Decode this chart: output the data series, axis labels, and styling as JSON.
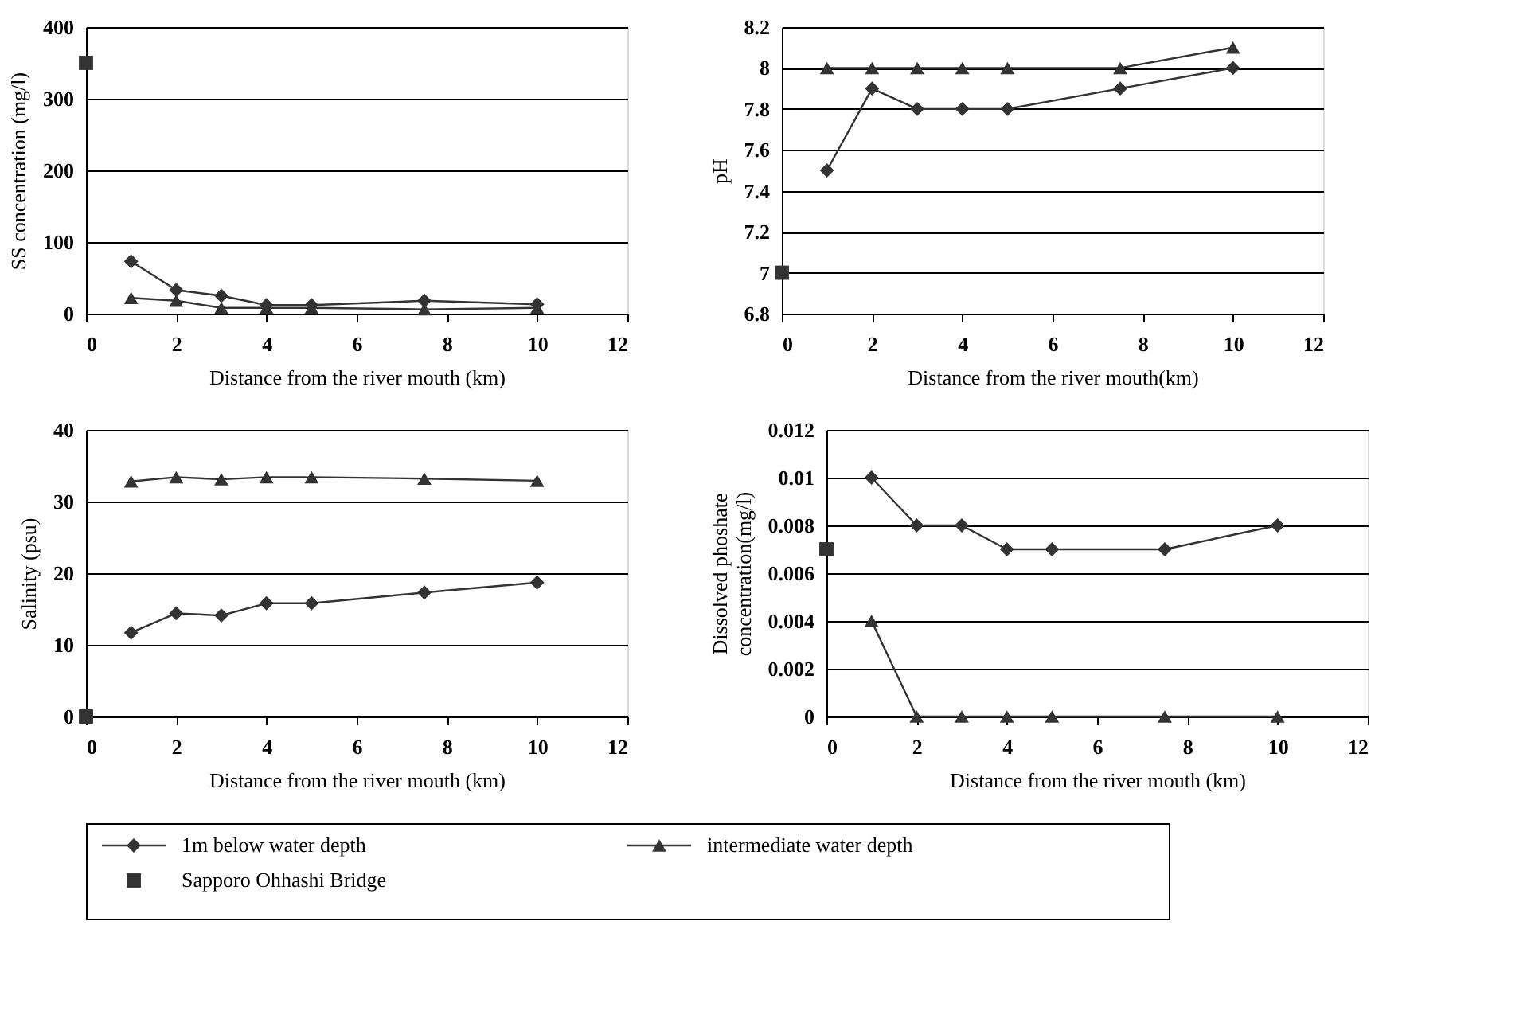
{
  "chart_data": [
    {
      "type": "line",
      "xlabel": "Distance from the river mouth (km)",
      "ylabel": "SS concentration (mg/l)",
      "xlim": [
        0,
        12
      ],
      "xticks": [
        0,
        2,
        4,
        6,
        8,
        10,
        12
      ],
      "ylim": [
        0,
        400
      ],
      "yticks": [
        0,
        100,
        200,
        300,
        400
      ],
      "grid": "y",
      "line_style": "solid",
      "legend": "bottom",
      "series": [
        {
          "name": "1m below water depth",
          "type": "line",
          "marker": "diamond",
          "color": "#333333",
          "x": [
            1,
            2,
            3,
            4,
            5,
            7.5,
            10
          ],
          "values": [
            73,
            33,
            25,
            12,
            12,
            18,
            13
          ]
        },
        {
          "name": "intermediate water depth",
          "type": "line",
          "marker": "triangle",
          "color": "#333333",
          "x": [
            1,
            2,
            3,
            4,
            5,
            7.5,
            10
          ],
          "values": [
            22,
            18,
            8,
            8,
            8,
            6,
            8
          ]
        },
        {
          "name": "Sapporo Ohhashi Bridge",
          "type": "scatter",
          "marker": "square",
          "color": "#333333",
          "x": [
            0
          ],
          "values": [
            350
          ]
        }
      ]
    },
    {
      "type": "line",
      "xlabel": "Distance from the river mouth(km)",
      "ylabel": "pH",
      "xlim": [
        0,
        12
      ],
      "xticks": [
        0,
        2,
        4,
        6,
        8,
        10,
        12
      ],
      "ylim": [
        6.8,
        8.2
      ],
      "yticks": [
        6.8,
        7,
        7.2,
        7.4,
        7.6,
        7.8,
        8,
        8.2
      ],
      "grid": "y",
      "line_style": "solid",
      "series": [
        {
          "type": "line",
          "marker": "diamond",
          "color": "#333333",
          "x": [
            1,
            2,
            3,
            4,
            5,
            7.5,
            10
          ],
          "values": [
            7.5,
            7.9,
            7.8,
            7.8,
            7.8,
            7.9,
            8.0
          ]
        },
        {
          "type": "line",
          "marker": "triangle",
          "color": "#333333",
          "x": [
            1,
            2,
            3,
            4,
            5,
            7.5,
            10
          ],
          "values": [
            8,
            8,
            8,
            8,
            8,
            8,
            8.1
          ]
        },
        {
          "type": "scatter",
          "marker": "square",
          "color": "#333333",
          "x": [
            0
          ],
          "values": [
            7.0
          ]
        }
      ]
    },
    {
      "type": "line",
      "xlabel": "Distance from the river mouth (km)",
      "ylabel": "Salinity (psu)",
      "xlim": [
        0,
        12
      ],
      "xticks": [
        0,
        2,
        4,
        6,
        8,
        10,
        12
      ],
      "ylim": [
        0,
        40
      ],
      "yticks": [
        0,
        10,
        20,
        30,
        40
      ],
      "grid": "y",
      "line_style": "solid",
      "series": [
        {
          "type": "line",
          "marker": "diamond",
          "color": "#333333",
          "x": [
            1,
            2,
            3,
            4,
            5,
            7.5,
            10
          ],
          "values": [
            11.7,
            14.4,
            14.1,
            15.8,
            15.8,
            17.3,
            18.7
          ]
        },
        {
          "type": "line",
          "marker": "triangle",
          "color": "#333333",
          "x": [
            1,
            2,
            3,
            4,
            5,
            7.5,
            10
          ],
          "values": [
            32.8,
            33.4,
            33.1,
            33.4,
            33.4,
            33.2,
            32.9
          ]
        },
        {
          "type": "scatter",
          "marker": "square",
          "color": "#333333",
          "x": [
            0
          ],
          "values": [
            0
          ]
        }
      ]
    },
    {
      "type": "line",
      "xlabel": "Distance from the river mouth (km)",
      "ylabel": "Dissolved phoshate\nconcentration(mg/l)",
      "xlim": [
        0,
        12
      ],
      "xticks": [
        0,
        2,
        4,
        6,
        8,
        10,
        12
      ],
      "ylim": [
        0,
        0.012
      ],
      "yticks": [
        0,
        0.002,
        0.004,
        0.006,
        0.008,
        0.01,
        0.012
      ],
      "grid": "y",
      "line_style": "solid",
      "series": [
        {
          "type": "line",
          "marker": "diamond",
          "color": "#333333",
          "x": [
            1,
            2,
            3,
            4,
            5,
            7.5,
            10
          ],
          "values": [
            0.01,
            0.008,
            0.008,
            0.007,
            0.007,
            0.007,
            0.008
          ]
        },
        {
          "type": "line",
          "marker": "triangle",
          "color": "#333333",
          "x": [
            1,
            2,
            3,
            4,
            5,
            7.5,
            10
          ],
          "values": [
            0.004,
            0,
            0,
            0,
            0,
            0,
            0
          ]
        },
        {
          "type": "scatter",
          "marker": "square",
          "color": "#333333",
          "x": [
            0
          ],
          "values": [
            0.007
          ]
        }
      ]
    }
  ]
}
